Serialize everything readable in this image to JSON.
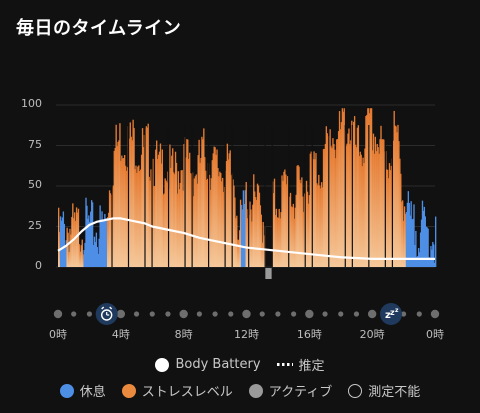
{
  "title": "毎日のタイムライン",
  "y_ticks": [
    "100",
    "75",
    "50",
    "25",
    "0"
  ],
  "x_ticks": [
    "0時",
    "4時",
    "8時",
    "12時",
    "16時",
    "20時",
    "0時"
  ],
  "legend": {
    "body_battery": "Body Battery",
    "estimated": "推定",
    "rest": "休息",
    "stress": "ストレスレベル",
    "active": "アクティブ",
    "unmeasurable": "測定不能"
  },
  "icons": {
    "wake": "alarm-clock-icon",
    "sleep": "sleep-zzz-icon"
  },
  "colors": {
    "background": "#111111",
    "rest": "#4e8fe6",
    "stress_top": "#e5792f",
    "stress_bottom": "#f5c89a",
    "active": "#9a9a9a",
    "battery_line": "#ffffff",
    "marker": "#1f3a5c"
  },
  "chart_data": {
    "type": "area",
    "x_unit": "hour of day",
    "xlim": [
      0,
      24
    ],
    "ylim": [
      0,
      100
    ],
    "events": {
      "wake_hour": 3.1,
      "sleep_hour": 21.2
    },
    "rest_periods": [
      [
        0.1,
        0.5
      ],
      [
        1.6,
        3.1
      ],
      [
        11.6,
        11.9
      ],
      [
        22.1,
        24.0
      ]
    ],
    "active_period": [
      13.2,
      13.6
    ],
    "stress_series": [
      [
        0.0,
        20
      ],
      [
        0.5,
        25
      ],
      [
        1.0,
        22
      ],
      [
        1.5,
        26
      ],
      [
        2.0,
        24
      ],
      [
        2.5,
        22
      ],
      [
        3.0,
        28
      ],
      [
        3.3,
        55
      ],
      [
        3.6,
        72
      ],
      [
        4.0,
        80
      ],
      [
        4.4,
        76
      ],
      [
        4.8,
        78
      ],
      [
        5.2,
        70
      ],
      [
        5.6,
        73
      ],
      [
        6.0,
        68
      ],
      [
        6.4,
        58
      ],
      [
        6.8,
        64
      ],
      [
        7.2,
        55
      ],
      [
        7.6,
        60
      ],
      [
        8.0,
        66
      ],
      [
        8.4,
        62
      ],
      [
        8.8,
        58
      ],
      [
        9.2,
        70
      ],
      [
        9.6,
        65
      ],
      [
        10.0,
        60
      ],
      [
        10.4,
        62
      ],
      [
        10.8,
        58
      ],
      [
        11.2,
        55
      ],
      [
        11.5,
        20
      ],
      [
        12.0,
        45
      ],
      [
        12.4,
        40
      ],
      [
        12.8,
        35
      ],
      [
        13.0,
        30
      ],
      [
        13.8,
        40
      ],
      [
        14.2,
        45
      ],
      [
        14.6,
        50
      ],
      [
        15.0,
        42
      ],
      [
        15.4,
        48
      ],
      [
        15.8,
        55
      ],
      [
        16.2,
        62
      ],
      [
        16.6,
        60
      ],
      [
        17.0,
        70
      ],
      [
        17.4,
        82
      ],
      [
        17.8,
        78
      ],
      [
        18.2,
        90
      ],
      [
        18.6,
        85
      ],
      [
        19.0,
        70
      ],
      [
        19.4,
        75
      ],
      [
        19.8,
        88
      ],
      [
        20.2,
        80
      ],
      [
        20.6,
        70
      ],
      [
        21.0,
        65
      ],
      [
        21.4,
        85
      ],
      [
        21.8,
        60
      ],
      [
        22.0,
        40
      ],
      [
        22.5,
        22
      ],
      [
        23.0,
        25
      ],
      [
        23.5,
        20
      ],
      [
        24.0,
        18
      ]
    ],
    "body_battery": [
      [
        0.0,
        10
      ],
      [
        0.5,
        13
      ],
      [
        1.0,
        17
      ],
      [
        1.5,
        22
      ],
      [
        2.0,
        26
      ],
      [
        2.5,
        28
      ],
      [
        3.0,
        29
      ],
      [
        3.5,
        30
      ],
      [
        4.0,
        30
      ],
      [
        4.5,
        29
      ],
      [
        5.0,
        28
      ],
      [
        5.5,
        27
      ],
      [
        6.0,
        25
      ],
      [
        7.0,
        23
      ],
      [
        8.0,
        21
      ],
      [
        9.0,
        18
      ],
      [
        10.0,
        16
      ],
      [
        11.0,
        14
      ],
      [
        12.0,
        12
      ],
      [
        13.0,
        11
      ],
      [
        14.0,
        10
      ],
      [
        15.0,
        9
      ],
      [
        16.0,
        8
      ],
      [
        17.0,
        7
      ],
      [
        18.0,
        6
      ],
      [
        20.0,
        5
      ],
      [
        22.0,
        5
      ],
      [
        24.0,
        5
      ]
    ]
  }
}
